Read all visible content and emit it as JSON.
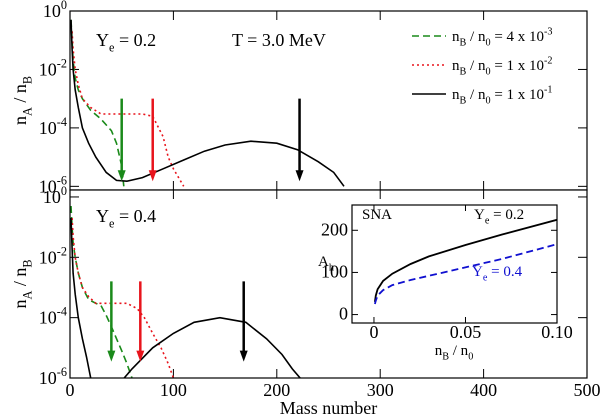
{
  "chart_data": [
    {
      "type": "line",
      "log_y": true,
      "xlim": [
        0,
        500
      ],
      "ylim": [
        7.5e-07,
        1
      ],
      "xticks": [
        0,
        100,
        200,
        300,
        400,
        500
      ],
      "xtick_labels": false,
      "yticks": [
        {
          "value": 1,
          "label": "10",
          "sup": "0"
        },
        {
          "value": 0.01,
          "label": "10",
          "sup": "-2"
        },
        {
          "value": 0.0001,
          "label": "10",
          "sup": "-4"
        },
        {
          "value": 1e-06,
          "label": "10",
          "sup": "-6"
        }
      ],
      "ylabel": [
        "n",
        {
          "sub": "A"
        },
        " / n",
        {
          "sub": "B"
        }
      ],
      "annotations": [
        {
          "text": [
            "Y",
            {
              "sub": "e"
            },
            " = 0.2"
          ]
        },
        {
          "text": [
            "T = 3.0 MeV"
          ]
        }
      ],
      "legend": "upper right",
      "series": [
        {
          "name": [
            "n",
            {
              "sub": "B"
            },
            " / n",
            {
              "sub": "0"
            },
            " = 4 x 10",
            {
              "sup": "-3"
            }
          ],
          "color": "#1a8a1a",
          "style": "dashed",
          "x": [
            1,
            2,
            3,
            5,
            8,
            12,
            20,
            30,
            40,
            45,
            50,
            52
          ],
          "values": [
            0.5,
            0.1,
            0.02,
            0.005,
            0.002,
            0.001,
            0.0004,
            0.0002,
            8e-05,
            3e-05,
            5e-06,
            1e-06
          ]
        },
        {
          "name": [
            "n",
            {
              "sub": "B"
            },
            " / n",
            {
              "sub": "0"
            },
            " = 1 x 10",
            {
              "sup": "-2"
            }
          ],
          "color": "#e8141c",
          "style": "dotted",
          "x": [
            2,
            3,
            5,
            8,
            12,
            20,
            30,
            40,
            50,
            60,
            70,
            80,
            90,
            95,
            100,
            105,
            110
          ],
          "values": [
            0.2,
            0.05,
            0.01,
            0.003,
            0.001,
            0.0005,
            0.0003,
            0.0003,
            0.0003,
            0.0003,
            0.0003,
            0.00025,
            5e-05,
            1e-05,
            4e-06,
            2e-06,
            1e-06
          ]
        },
        {
          "name": [
            "n",
            {
              "sub": "B"
            },
            " / n",
            {
              "sub": "0"
            },
            " = 1 x 10",
            {
              "sup": "-1"
            }
          ],
          "color": "#000000",
          "style": "solid",
          "x": [
            1,
            2,
            3,
            5,
            8,
            12,
            18,
            25,
            35,
            45,
            55,
            70,
            90,
            110,
            130,
            150,
            175,
            200,
            220,
            240,
            255,
            265
          ],
          "values": [
            0.5,
            0.05,
            0.01,
            0.002,
            0.0005,
            0.0001,
            3e-05,
            1e-05,
            3e-06,
            1.6e-06,
            1.5e-06,
            2e-06,
            4e-06,
            8e-06,
            1.6e-05,
            2.6e-05,
            3.5e-05,
            3e-05,
            1.8e-05,
            7e-06,
            3e-06,
            1e-06
          ]
        }
      ],
      "arrows": [
        {
          "x": 50,
          "from": 0.001,
          "to": 1.5e-06,
          "color": "#1a8a1a"
        },
        {
          "x": 80,
          "from": 0.001,
          "to": 1.5e-06,
          "color": "#e8141c"
        },
        {
          "x": 222,
          "from": 0.001,
          "to": 1.5e-06,
          "color": "#000000"
        }
      ]
    },
    {
      "type": "line",
      "log_y": true,
      "xlim": [
        0,
        500
      ],
      "ylim": [
        1e-06,
        1.7
      ],
      "xticks": [
        0,
        100,
        200,
        300,
        400,
        500
      ],
      "yticks": [
        {
          "value": 1,
          "label": "10",
          "sup": "0"
        },
        {
          "value": 0.01,
          "label": "10",
          "sup": "-2"
        },
        {
          "value": 0.0001,
          "label": "10",
          "sup": "-4"
        },
        {
          "value": 1e-06,
          "label": "10",
          "sup": "-6"
        }
      ],
      "xlabel": [
        "Mass number"
      ],
      "ylabel": [
        "n",
        {
          "sub": "A"
        },
        " / n",
        {
          "sub": "B"
        }
      ],
      "annotations": [
        {
          "text": [
            "Y",
            {
              "sub": "e"
            },
            " = 0.4"
          ]
        }
      ],
      "series": [
        {
          "color": "#1a8a1a",
          "style": "dashed",
          "x": [
            1,
            2,
            3,
            5,
            8,
            12,
            18,
            25,
            30,
            35,
            40,
            45,
            50,
            55,
            60
          ],
          "values": [
            0.5,
            0.1,
            0.03,
            0.01,
            0.003,
            0.001,
            0.0004,
            0.0003,
            0.00025,
            0.00012,
            5e-05,
            2e-05,
            8e-06,
            3e-06,
            1e-06
          ]
        },
        {
          "color": "#e8141c",
          "style": "dotted",
          "x": [
            2,
            3,
            5,
            8,
            12,
            18,
            25,
            35,
            45,
            55,
            65,
            72,
            80,
            88,
            95,
            100
          ],
          "values": [
            0.2,
            0.05,
            0.01,
            0.003,
            0.001,
            0.0005,
            0.0003,
            0.0003,
            0.0003,
            0.0003,
            0.0002,
            0.0001,
            3e-05,
            1e-05,
            3e-06,
            1e-06
          ]
        },
        {
          "color": "#000000",
          "style": "solid",
          "x": [
            1,
            2,
            3,
            5,
            8,
            12,
            16,
            20,
            30,
            40,
            50,
            60,
            80,
            100,
            120,
            145,
            170,
            190,
            205,
            215,
            225
          ],
          "values": [
            0.2,
            0.02,
            0.003,
            0.0006,
            0.0001,
            2e-05,
            5e-06,
            1e-06,
            3e-07,
            3e-07,
            8e-07,
            2e-06,
            1e-05,
            3e-05,
            7e-05,
            0.0001,
            7e-05,
            2e-05,
            6e-06,
            2e-06,
            8e-07
          ]
        }
      ],
      "arrows": [
        {
          "x": 40,
          "from": 0.0016,
          "to": 3.5e-06,
          "color": "#1a8a1a"
        },
        {
          "x": 68,
          "from": 0.0016,
          "to": 3.5e-06,
          "color": "#e8141c"
        },
        {
          "x": 168,
          "from": 0.0016,
          "to": 3.5e-06,
          "color": "#000000"
        }
      ]
    },
    {
      "type": "line",
      "xlim": [
        -0.012,
        0.1
      ],
      "ylim": [
        -20,
        260
      ],
      "xticks": [
        0,
        0.05,
        {
          "value": 0.1,
          "label": "0.10"
        }
      ],
      "yticks": [
        0,
        100,
        200
      ],
      "xlabel": [
        "n",
        {
          "sub": "B"
        },
        " / n",
        {
          "sub": "0"
        }
      ],
      "ylabel": [
        "A",
        {
          "sub": "h"
        }
      ],
      "annotations": [
        {
          "text": [
            "SNA"
          ]
        },
        {
          "text": [
            "Y",
            {
              "sub": "e"
            },
            " = 0.2"
          ]
        },
        {
          "text": [
            "Y",
            {
              "sub": "e"
            },
            " = 0.4"
          ],
          "color": "#1010d0"
        }
      ],
      "series": [
        {
          "color": "#000000",
          "style": "solid",
          "x": [
            0.0005,
            0.001,
            0.002,
            0.005,
            0.01,
            0.02,
            0.03,
            0.05,
            0.07,
            0.1
          ],
          "values": [
            30,
            45,
            60,
            80,
            97,
            120,
            138,
            165,
            190,
            225
          ]
        },
        {
          "color": "#1010d0",
          "style": "dashed",
          "x": [
            0.0005,
            0.001,
            0.002,
            0.005,
            0.01,
            0.02,
            0.04,
            0.07,
            0.1
          ],
          "values": [
            25,
            33,
            45,
            58,
            70,
            82,
            102,
            132,
            167
          ]
        }
      ]
    }
  ]
}
